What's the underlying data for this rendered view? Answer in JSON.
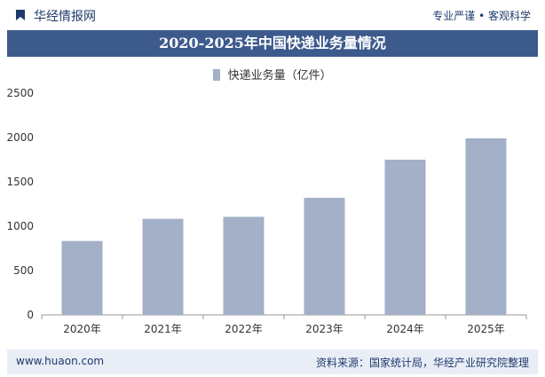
{
  "header": {
    "brand": "华经情报网",
    "tagline": "专业严谨 • 客观科学",
    "icon": "bookmark-logo-icon"
  },
  "chart_title": "2020-2025年中国快递业务量情况",
  "footer": {
    "url": "www.huaon.com",
    "source": "资料来源：国家统计局，华经产业研究院整理"
  },
  "colors": {
    "bar": "#a4b0c8",
    "title_bg": "#3d5a8c",
    "footer_bg": "#e8edf6",
    "brand": "#1f3a6b"
  },
  "chart_data": {
    "type": "bar",
    "categories": [
      "2020年",
      "2021年",
      "2022年",
      "2023年",
      "2024年",
      "2025年"
    ],
    "series": [
      {
        "name": "快递业务量（亿件）",
        "values": [
          833,
          1083,
          1106,
          1320,
          1750,
          1990
        ]
      }
    ],
    "ylim": [
      0,
      2500
    ],
    "yticks": [
      0,
      500,
      1000,
      1500,
      2000,
      2500
    ],
    "grid": false,
    "legend": "top-center"
  }
}
